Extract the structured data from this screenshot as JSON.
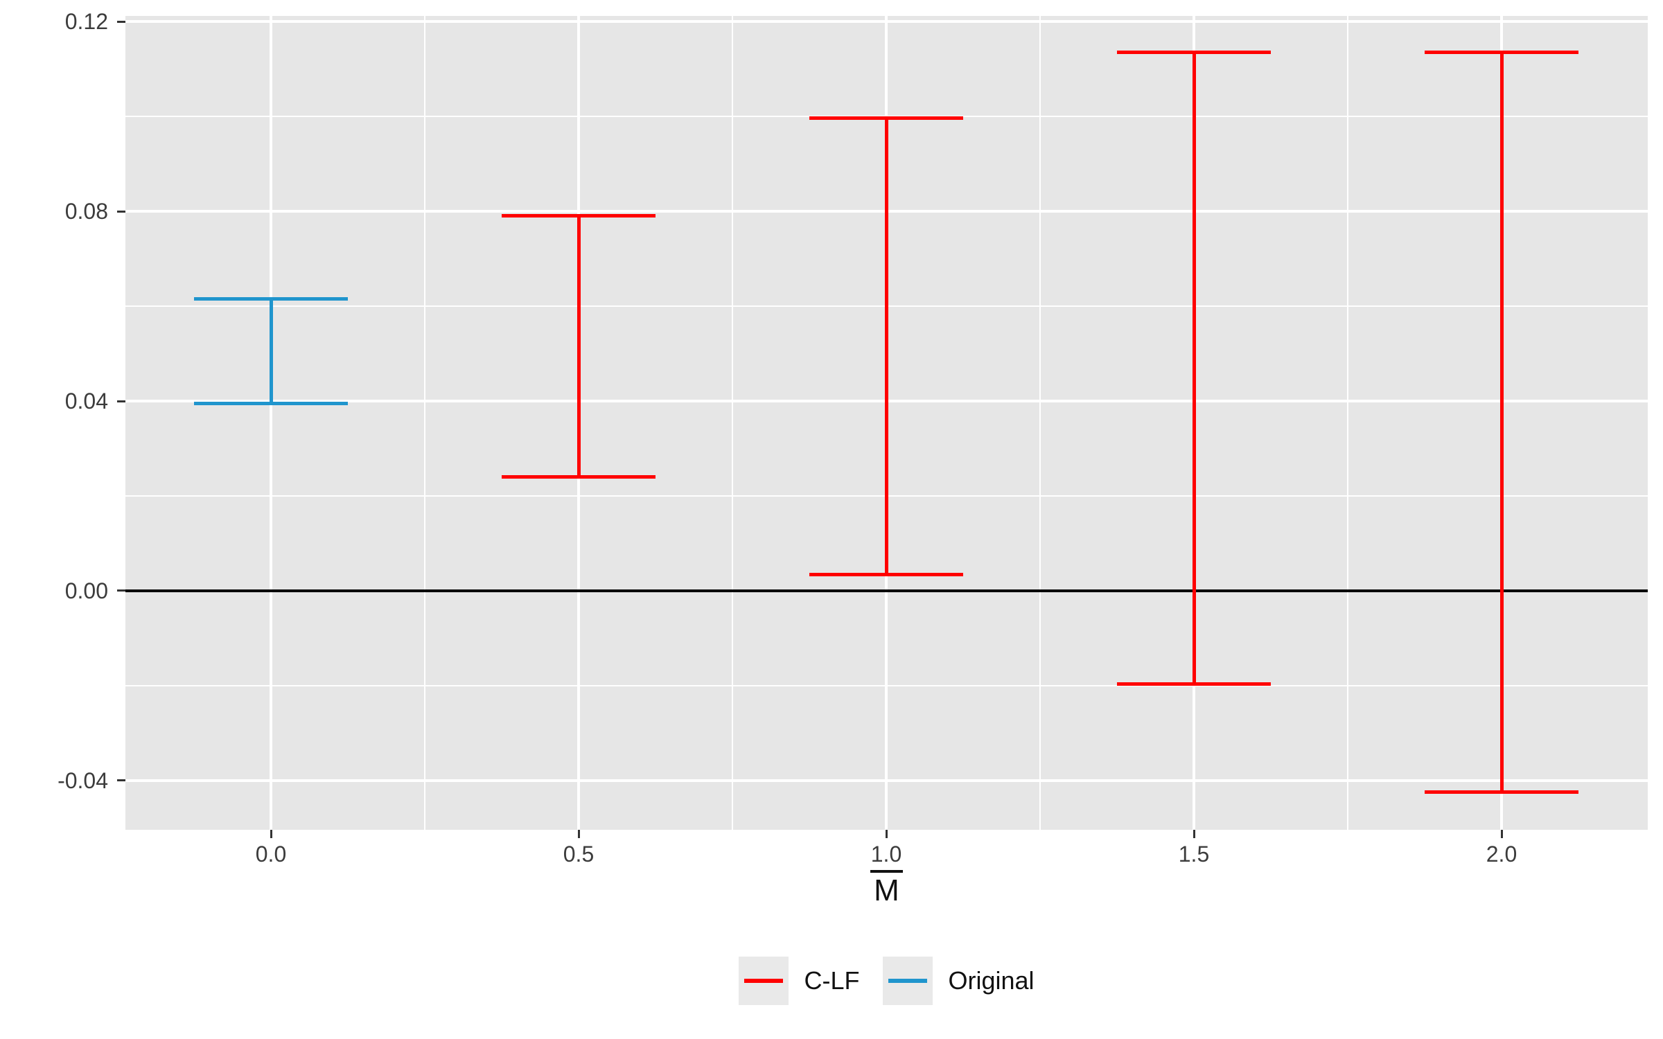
{
  "chart": {
    "panel_background": "#E6E6E6",
    "grid_color": "#FFFFFF",
    "tick_mark_color": "#333333",
    "tick_label_color": "#3C3C3C",
    "zero_line_color": "#000000",
    "figure_background": "#FFFFFF"
  },
  "chart_data": {
    "type": "errorbar",
    "title": "",
    "xlabel": "M",
    "xlabel_overline": true,
    "ylabel": "",
    "xlim": [
      -0.2365,
      2.2376
    ],
    "ylim": [
      -0.0504,
      0.1212
    ],
    "x_ticks": [
      {
        "value": 0.0,
        "label": "0.0"
      },
      {
        "value": 0.5,
        "label": "0.5"
      },
      {
        "value": 1.0,
        "label": "1.0"
      },
      {
        "value": 1.5,
        "label": "1.5"
      },
      {
        "value": 2.0,
        "label": "2.0"
      }
    ],
    "y_ticks": [
      {
        "value": -0.04,
        "label": "-0.04"
      },
      {
        "value": 0.0,
        "label": "0.00"
      },
      {
        "value": 0.04,
        "label": "0.04"
      },
      {
        "value": 0.08,
        "label": "0.08"
      },
      {
        "value": 0.12,
        "label": "0.12"
      }
    ],
    "x_minor": [
      0.25,
      0.75,
      1.25,
      1.75
    ],
    "y_minor": [
      -0.02,
      0.02,
      0.06,
      0.1
    ],
    "grid": true,
    "hline": {
      "y": 0.0,
      "color": "#000000"
    },
    "cap_half_width": 0.125,
    "series": [
      {
        "name": "C-LF",
        "color": "#FF0000",
        "points": [
          {
            "x": 0.5,
            "ymin": 0.024,
            "ymax": 0.079
          },
          {
            "x": 1.0,
            "ymin": 0.0034,
            "ymax": 0.0996
          },
          {
            "x": 1.5,
            "ymin": -0.0196,
            "ymax": 0.1136
          },
          {
            "x": 2.0,
            "ymin": -0.0425,
            "ymax": 0.1135
          }
        ]
      },
      {
        "name": "Original",
        "color": "#2095CD",
        "points": [
          {
            "x": 0.0,
            "ymin": 0.0395,
            "ymax": 0.0615
          }
        ]
      }
    ],
    "legend": {
      "position": "bottom",
      "items": [
        {
          "label": "C-LF",
          "color": "#FF0000"
        },
        {
          "label": "Original",
          "color": "#2095CD"
        }
      ]
    }
  }
}
